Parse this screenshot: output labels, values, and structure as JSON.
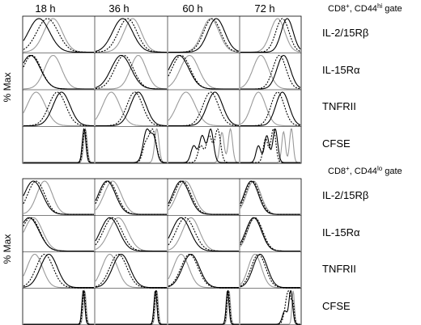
{
  "columns": [
    "18 h",
    "36 h",
    "60 h",
    "72 h"
  ],
  "y_axis_label": "% Max",
  "colors": {
    "gray_curve": "#9a9a9a",
    "black_curve": "#000000"
  },
  "panels": [
    {
      "gate": {
        "prefix": "CD8",
        "sup1": "+",
        "mid": ", CD44",
        "sup2": "hi",
        "suffix": " gate"
      },
      "rows": [
        {
          "marker": "IL-2/15R",
          "greek": "β"
        },
        {
          "marker": "IL-15R",
          "greek": "α"
        },
        {
          "marker": "TNFRII",
          "greek": ""
        },
        {
          "marker": "CFSE",
          "greek": ""
        }
      ]
    },
    {
      "gate": {
        "prefix": "CD8",
        "sup1": "+",
        "mid": ", CD44",
        "sup2": "lo",
        "suffix": " gate"
      },
      "rows": [
        {
          "marker": "IL-2/15R",
          "greek": "β"
        },
        {
          "marker": "IL-15R",
          "greek": "α"
        },
        {
          "marker": "TNFRII",
          "greek": ""
        },
        {
          "marker": "CFSE",
          "greek": ""
        }
      ]
    }
  ],
  "histograms": {
    "top": [
      [
        {
          "gray": [
            [
              0.42,
              0.13
            ]
          ],
          "dot": [
            [
              0.34,
              0.15
            ]
          ],
          "black": [
            [
              0.22,
              0.15
            ]
          ]
        },
        {
          "gray": [
            [
              0.52,
              0.12
            ]
          ],
          "dot": [
            [
              0.45,
              0.13
            ]
          ],
          "black": [
            [
              0.38,
              0.14
            ]
          ]
        },
        {
          "gray": [
            [
              0.6,
              0.12
            ]
          ],
          "dot": [
            [
              0.62,
              0.12
            ]
          ],
          "black": [
            [
              0.68,
              0.12
            ]
          ]
        },
        {
          "gray": [
            [
              0.62,
              0.12
            ]
          ],
          "dot": [
            [
              0.7,
              0.11
            ]
          ],
          "black": [
            [
              0.78,
              0.1
            ]
          ]
        }
      ],
      [
        {
          "gray": [
            [
              0.42,
              0.12
            ]
          ],
          "dot": [
            [
              0.12,
              0.13
            ]
          ],
          "black": [
            [
              0.1,
              0.14
            ]
          ]
        },
        {
          "gray": [
            [
              0.6,
              0.11
            ]
          ],
          "dot": [
            [
              0.4,
              0.13
            ]
          ],
          "black": [
            [
              0.36,
              0.14
            ]
          ]
        },
        {
          "gray": [
            [
              0.3,
              0.13
            ]
          ],
          "dot": [
            [
              0.18,
              0.13
            ]
          ],
          "black": [
            [
              0.15,
              0.14
            ]
          ]
        },
        {
          "gray": [
            [
              0.34,
              0.13
            ]
          ],
          "dot": [
            [
              0.65,
              0.11
            ]
          ],
          "black": [
            [
              0.72,
              0.11
            ]
          ]
        }
      ],
      [
        {
          "gray": [
            [
              0.18,
              0.13
            ]
          ],
          "dot": [
            [
              0.48,
              0.12
            ]
          ],
          "black": [
            [
              0.54,
              0.12
            ]
          ]
        },
        {
          "gray": [
            [
              0.22,
              0.12
            ]
          ],
          "dot": [
            [
              0.55,
              0.11
            ]
          ],
          "black": [
            [
              0.6,
              0.11
            ]
          ]
        },
        {
          "gray": [
            [
              0.25,
              0.13
            ]
          ],
          "dot": [
            [
              0.6,
              0.11
            ]
          ],
          "black": [
            [
              0.66,
              0.11
            ]
          ]
        },
        {
          "gray": [
            [
              0.3,
              0.12
            ]
          ],
          "dot": [
            [
              0.62,
              0.11
            ]
          ],
          "black": [
            [
              0.7,
              0.11
            ]
          ]
        }
      ],
      [
        {
          "gray": [
            [
              0.88,
              0.025
            ]
          ],
          "dot": [
            [
              0.87,
              0.025
            ]
          ],
          "black": [
            [
              0.86,
              0.025
            ]
          ]
        },
        {
          "gray": [
            [
              0.86,
              0.03
            ]
          ],
          "dot": [
            [
              0.8,
              0.05
            ],
            [
              0.7,
              0.04,
              0.5
            ]
          ],
          "black": [
            [
              0.72,
              0.05
            ],
            [
              0.82,
              0.04,
              0.7
            ]
          ]
        },
        {
          "gray": [
            [
              0.88,
              0.03
            ],
            [
              0.76,
              0.03,
              0.9
            ]
          ],
          "dot": [
            [
              0.7,
              0.04
            ],
            [
              0.58,
              0.04,
              0.8
            ],
            [
              0.46,
              0.04,
              0.5
            ]
          ],
          "black": [
            [
              0.6,
              0.04
            ],
            [
              0.48,
              0.04,
              0.8
            ],
            [
              0.36,
              0.04,
              0.5
            ]
          ]
        },
        {
          "gray": [
            [
              0.85,
              0.03
            ],
            [
              0.72,
              0.03,
              0.9
            ]
          ],
          "dot": [
            [
              0.55,
              0.04
            ],
            [
              0.42,
              0.04,
              0.7
            ]
          ],
          "black": [
            [
              0.58,
              0.04
            ],
            [
              0.44,
              0.04,
              0.8
            ],
            [
              0.3,
              0.04,
              0.5
            ]
          ]
        }
      ]
    ],
    "bottom": [
      [
        {
          "gray": [
            [
              0.3,
              0.11
            ]
          ],
          "dot": [
            [
              0.18,
              0.12
            ]
          ],
          "black": [
            [
              0.14,
              0.13
            ]
          ]
        },
        {
          "gray": [
            [
              0.24,
              0.12
            ]
          ],
          "dot": [
            [
              0.18,
              0.12
            ]
          ],
          "black": [
            [
              0.16,
              0.12
            ]
          ]
        },
        {
          "gray": [
            [
              0.24,
              0.12
            ]
          ],
          "dot": [
            [
              0.2,
              0.12
            ]
          ],
          "black": [
            [
              0.18,
              0.12
            ]
          ]
        },
        {
          "gray": [
            [
              0.22,
              0.12
            ]
          ],
          "dot": [
            [
              0.2,
              0.12
            ]
          ],
          "black": [
            [
              0.18,
              0.12
            ]
          ]
        }
      ],
      [
        {
          "gray": [
            [
              0.14,
              0.13
            ]
          ],
          "dot": [
            [
              0.1,
              0.13
            ]
          ],
          "black": [
            [
              0.08,
              0.14
            ]
          ]
        },
        {
          "gray": [
            [
              0.32,
              0.13
            ]
          ],
          "dot": [
            [
              0.24,
              0.13
            ]
          ],
          "black": [
            [
              0.2,
              0.13
            ]
          ]
        },
        {
          "gray": [
            [
              0.32,
              0.12
            ]
          ],
          "dot": [
            [
              0.24,
              0.13
            ]
          ],
          "black": [
            [
              0.18,
              0.13
            ]
          ]
        },
        {
          "gray": [
            [
              0.24,
              0.12
            ]
          ],
          "dot": [
            [
              0.24,
              0.13
            ]
          ],
          "black": [
            [
              0.22,
              0.13
            ]
          ]
        }
      ],
      [
        {
          "gray": [
            [
              0.16,
              0.11
            ]
          ],
          "dot": [
            [
              0.3,
              0.12
            ]
          ],
          "black": [
            [
              0.36,
              0.12
            ]
          ]
        },
        {
          "gray": [
            [
              0.2,
              0.11
            ]
          ],
          "dot": [
            [
              0.32,
              0.12
            ]
          ],
          "black": [
            [
              0.36,
              0.12
            ]
          ]
        },
        {
          "gray": [
            [
              0.18,
              0.11
            ]
          ],
          "dot": [
            [
              0.3,
              0.12
            ]
          ],
          "black": [
            [
              0.32,
              0.12
            ]
          ]
        },
        {
          "gray": [
            [
              0.24,
              0.11
            ]
          ],
          "dot": [
            [
              0.3,
              0.12
            ]
          ],
          "black": [
            [
              0.33,
              0.12
            ]
          ]
        }
      ],
      [
        {
          "gray": [
            [
              0.87,
              0.02
            ]
          ],
          "dot": [
            [
              0.86,
              0.02
            ]
          ],
          "black": [
            [
              0.85,
              0.02
            ]
          ]
        },
        {
          "gray": [
            [
              0.86,
              0.02
            ]
          ],
          "dot": [
            [
              0.85,
              0.02
            ]
          ],
          "black": [
            [
              0.84,
              0.02
            ]
          ]
        },
        {
          "gray": [
            [
              0.86,
              0.02
            ]
          ],
          "dot": [
            [
              0.85,
              0.02
            ]
          ],
          "black": [
            [
              0.84,
              0.02
            ]
          ]
        },
        {
          "gray": [
            [
              0.88,
              0.02
            ]
          ],
          "dot": [
            [
              0.8,
              0.05
            ],
            [
              0.88,
              0.02,
              0.4
            ]
          ],
          "black": [
            [
              0.84,
              0.03
            ],
            [
              0.74,
              0.04,
              0.4
            ]
          ]
        }
      ]
    ]
  }
}
